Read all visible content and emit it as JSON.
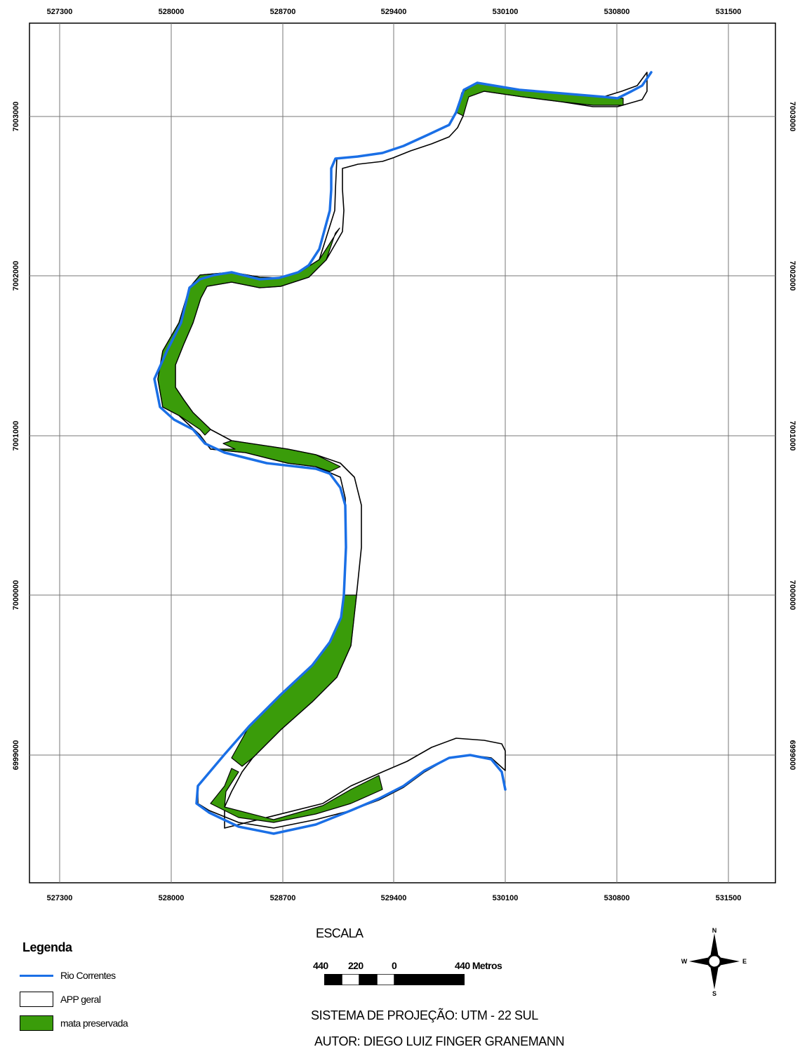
{
  "map": {
    "x_ticks": [
      "527300",
      "528000",
      "528700",
      "529400",
      "530100",
      "530800",
      "531500"
    ],
    "y_ticks": [
      "7003000",
      "7002000",
      "7001000",
      "7000000",
      "6999000"
    ]
  },
  "legend": {
    "title": "Legenda",
    "items": [
      {
        "label": "Rio Correntes",
        "color": "#1a6fe6"
      },
      {
        "label": "APP geral",
        "color": "#ffffff"
      },
      {
        "label": "mata preservada",
        "color": "#3a9c0a"
      }
    ]
  },
  "scale": {
    "title": "ESCALA",
    "labels": [
      "440",
      "220",
      "0",
      "440 Metros"
    ]
  },
  "projection": "SISTEMA DE PROJEÇÃO: UTM - 22 SUL",
  "author": "AUTOR: DIEGO LUIZ FINGER GRANEMANN",
  "compass": {
    "n": "N",
    "s": "S",
    "e": "E",
    "w": "W"
  }
}
